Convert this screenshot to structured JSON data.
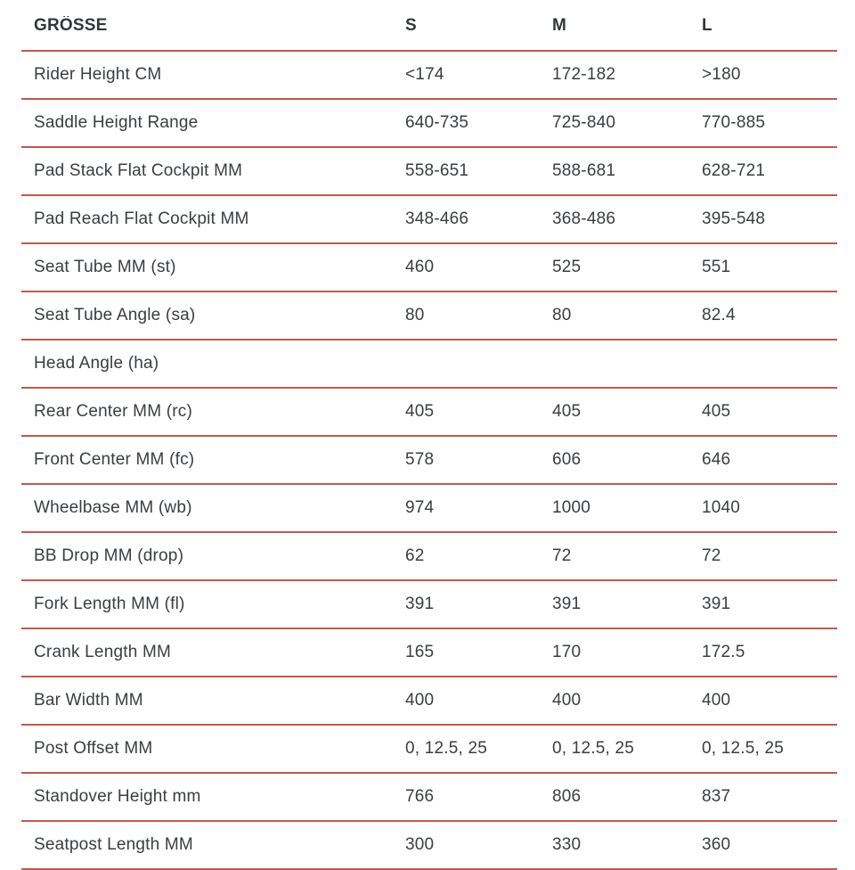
{
  "colors": {
    "background": "#ffffff",
    "divider": "#c0594f",
    "text": "#3a3e41",
    "header_text": "#33373a"
  },
  "table": {
    "header": {
      "label": "GRÖSSE",
      "columns": [
        "S",
        "M",
        "L"
      ]
    },
    "rows": [
      {
        "label": "Rider Height CM",
        "values": [
          "<174",
          "172-182",
          ">180"
        ]
      },
      {
        "label": "Saddle Height Range",
        "values": [
          "640-735",
          "725-840",
          "770-885"
        ]
      },
      {
        "label": "Pad Stack Flat Cockpit MM",
        "values": [
          "558-651",
          "588-681",
          "628-721"
        ]
      },
      {
        "label": "Pad Reach Flat Cockpit MM",
        "values": [
          "348-466",
          "368-486",
          "395-548"
        ]
      },
      {
        "label": "Seat Tube MM (st)",
        "values": [
          "460",
          "525",
          "551"
        ]
      },
      {
        "label": "Seat Tube Angle (sa)",
        "values": [
          "80",
          "80",
          "82.4"
        ]
      },
      {
        "label": "Head Angle (ha)",
        "values": [
          "",
          "",
          ""
        ]
      },
      {
        "label": "Rear Center MM (rc)",
        "values": [
          "405",
          "405",
          "405"
        ]
      },
      {
        "label": "Front Center MM (fc)",
        "values": [
          "578",
          "606",
          "646"
        ]
      },
      {
        "label": "Wheelbase MM (wb)",
        "values": [
          "974",
          "1000",
          "1040"
        ]
      },
      {
        "label": "BB Drop MM (drop)",
        "values": [
          "62",
          "72",
          "72"
        ]
      },
      {
        "label": "Fork Length MM (fl)",
        "values": [
          "391",
          "391",
          "391"
        ]
      },
      {
        "label": "Crank Length MM",
        "values": [
          "165",
          "170",
          "172.5"
        ]
      },
      {
        "label": "Bar Width MM",
        "values": [
          "400",
          "400",
          "400"
        ]
      },
      {
        "label": "Post Offset MM",
        "values": [
          "0, 12.5, 25",
          "0, 12.5, 25",
          "0, 12.5, 25"
        ]
      },
      {
        "label": "Standover Height mm",
        "values": [
          "766",
          "806",
          "837"
        ]
      },
      {
        "label": "Seatpost Length MM",
        "values": [
          "300",
          "330",
          "360"
        ]
      }
    ]
  },
  "chart_data": {
    "type": "table",
    "title": "GRÖSSE",
    "columns": [
      "GRÖSSE",
      "S",
      "M",
      "L"
    ],
    "rows": [
      [
        "Rider Height CM",
        "<174",
        "172-182",
        ">180"
      ],
      [
        "Saddle Height Range",
        "640-735",
        "725-840",
        "770-885"
      ],
      [
        "Pad Stack Flat Cockpit MM",
        "558-651",
        "588-681",
        "628-721"
      ],
      [
        "Pad Reach Flat Cockpit MM",
        "348-466",
        "368-486",
        "395-548"
      ],
      [
        "Seat Tube MM (st)",
        "460",
        "525",
        "551"
      ],
      [
        "Seat Tube Angle (sa)",
        "80",
        "80",
        "82.4"
      ],
      [
        "Head Angle (ha)",
        "",
        "",
        ""
      ],
      [
        "Rear Center MM (rc)",
        "405",
        "405",
        "405"
      ],
      [
        "Front Center MM (fc)",
        "578",
        "606",
        "646"
      ],
      [
        "Wheelbase MM (wb)",
        "974",
        "1000",
        "1040"
      ],
      [
        "BB Drop MM (drop)",
        "62",
        "72",
        "72"
      ],
      [
        "Fork Length MM (fl)",
        "391",
        "391",
        "391"
      ],
      [
        "Crank Length MM",
        "165",
        "170",
        "172.5"
      ],
      [
        "Bar Width MM",
        "400",
        "400",
        "400"
      ],
      [
        "Post Offset MM",
        "0, 12.5, 25",
        "0, 12.5, 25",
        "0, 12.5, 25"
      ],
      [
        "Standover Height mm",
        "766",
        "806",
        "837"
      ],
      [
        "Seatpost Length MM",
        "300",
        "330",
        "360"
      ]
    ]
  }
}
